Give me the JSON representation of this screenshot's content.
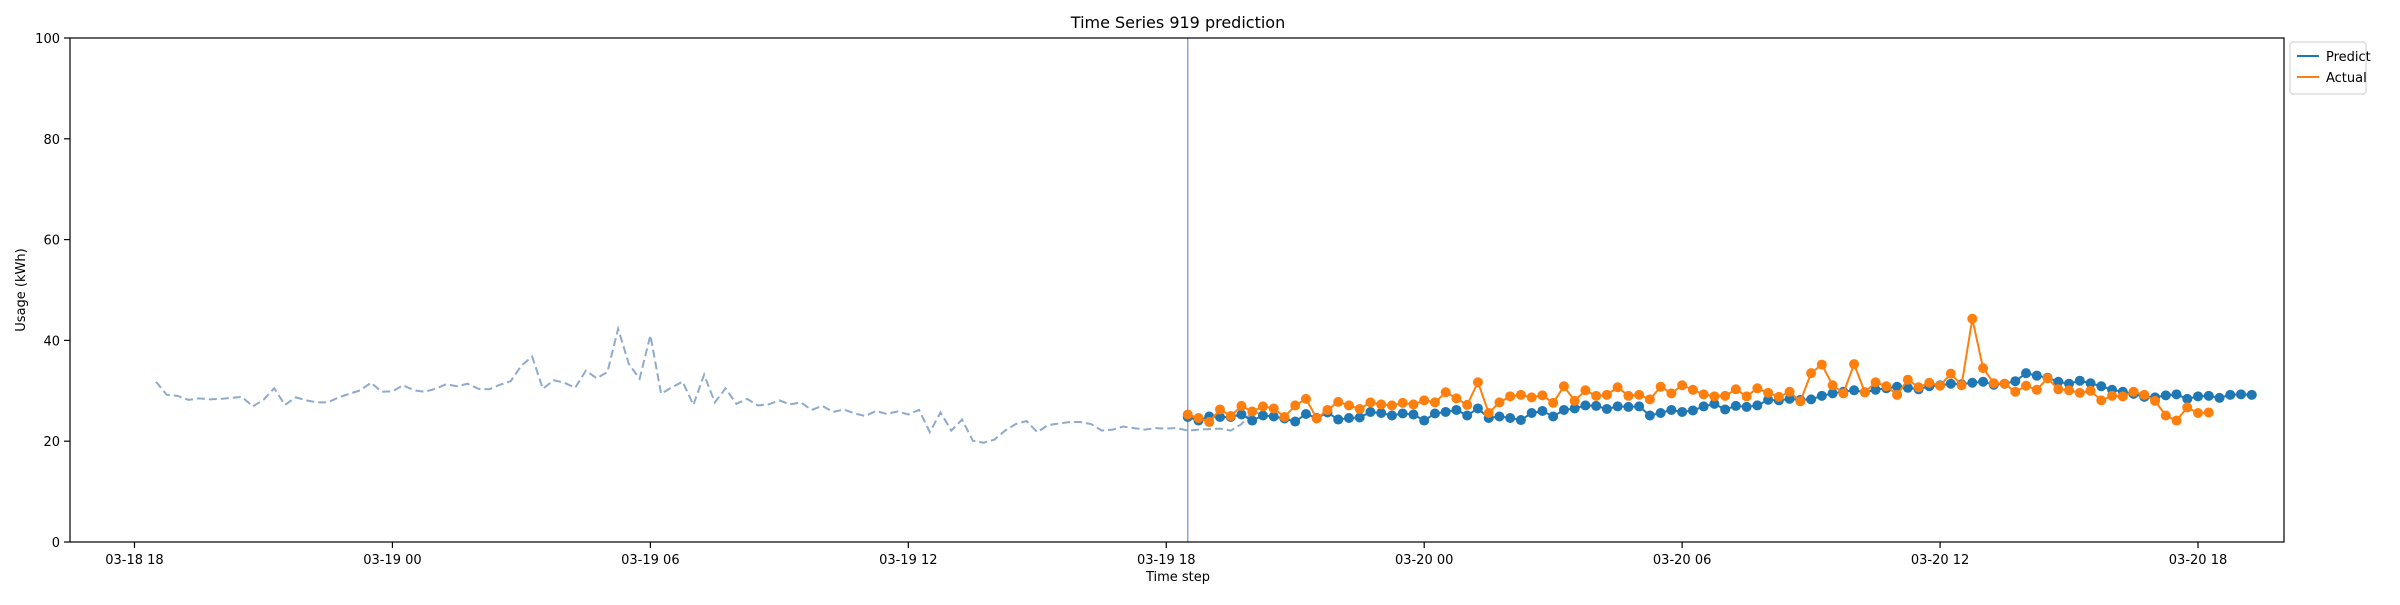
{
  "chart_data": {
    "type": "line",
    "title": "Time Series 919 prediction",
    "xlabel": "Time step",
    "ylabel": "Usage (kWh)",
    "ylim": [
      0,
      100
    ],
    "yticks": [
      0,
      20,
      40,
      60,
      80,
      100
    ],
    "xlim": [
      "2024-03-18 16:30",
      "2024-03-20 20:00"
    ],
    "xticks": [
      {
        "t": "2024-03-18 18:00",
        "label": "03-18 18"
      },
      {
        "t": "2024-03-19 00:00",
        "label": "03-19 00"
      },
      {
        "t": "2024-03-19 06:00",
        "label": "03-19 06"
      },
      {
        "t": "2024-03-19 12:00",
        "label": "03-19 12"
      },
      {
        "t": "2024-03-19 18:00",
        "label": "03-19 18"
      },
      {
        "t": "2024-03-20 00:00",
        "label": "03-20 00"
      },
      {
        "t": "2024-03-20 06:00",
        "label": "03-20 06"
      },
      {
        "t": "2024-03-20 12:00",
        "label": "03-20 12"
      },
      {
        "t": "2024-03-20 18:00",
        "label": "03-20 18"
      }
    ],
    "grid": false,
    "legend_position": "outside-top-right",
    "forecast_start": "2024-03-19 18:30",
    "series": [
      {
        "name": "",
        "role": "history",
        "style": "dashed",
        "color": "#8eaacc",
        "interval_minutes": 15,
        "start": "2024-03-18 18:30",
        "values": [
          31.8,
          29.2,
          29.0,
          28.2,
          28.5,
          28.3,
          28.4,
          28.6,
          28.8,
          26.9,
          28.2,
          30.5,
          27.2,
          28.7,
          28.1,
          27.7,
          27.7,
          28.7,
          29.4,
          30.1,
          31.6,
          29.8,
          29.9,
          31.1,
          30.1,
          29.8,
          30.4,
          31.3,
          30.9,
          31.4,
          30.4,
          30.3,
          31.2,
          31.9,
          35.0,
          36.8,
          30.4,
          32.1,
          31.6,
          30.6,
          34.0,
          32.5,
          33.7,
          42.3,
          35.3,
          32.4,
          41.0,
          29.4,
          30.7,
          31.8,
          27.2,
          33.2,
          27.7,
          30.5,
          27.4,
          28.4,
          27.1,
          27.3,
          28.1,
          27.3,
          27.7,
          26.2,
          27.0,
          25.8,
          26.3,
          25.5,
          25.0,
          26.0,
          25.4,
          25.9,
          25.3,
          26.2,
          21.8,
          25.7,
          22.1,
          24.3,
          20.1,
          19.7,
          20.3,
          22.1,
          23.4,
          24.0,
          21.8,
          23.2,
          23.5,
          23.8,
          23.8,
          23.4,
          22.1,
          22.3,
          22.9,
          22.6,
          22.3,
          22.6,
          22.5,
          22.6,
          22.1,
          22.3,
          22.4,
          22.5,
          22.1,
          23.4,
          25.9,
          25.3
        ]
      },
      {
        "name": "Predict",
        "color": "#1f77b4",
        "interval_minutes": 15,
        "start": "2024-03-19 18:30",
        "values": [
          24.8,
          24.1,
          24.9,
          24.8,
          24.8,
          25.3,
          24.1,
          25.1,
          24.9,
          24.5,
          23.9,
          25.4,
          24.6,
          25.7,
          24.3,
          24.6,
          24.7,
          25.8,
          25.6,
          25.1,
          25.5,
          25.3,
          24.1,
          25.5,
          25.8,
          26.2,
          25.1,
          26.5,
          24.6,
          24.9,
          24.6,
          24.2,
          25.6,
          26.0,
          24.9,
          26.2,
          26.5,
          27.1,
          27.0,
          26.4,
          26.9,
          26.8,
          26.9,
          25.1,
          25.6,
          26.2,
          25.8,
          26.1,
          26.9,
          27.4,
          26.3,
          27.0,
          26.8,
          27.1,
          28.2,
          28.1,
          28.4,
          28.2,
          28.3,
          29.0,
          29.5,
          29.8,
          30.1,
          29.7,
          30.2,
          30.5,
          30.8,
          30.6,
          30.3,
          30.9,
          31.1,
          31.4,
          31.3,
          31.6,
          31.8,
          31.2,
          31.4,
          31.9,
          33.5,
          33.0,
          32.6,
          31.8,
          31.4,
          32.0,
          31.5,
          30.9,
          30.2,
          29.8,
          29.4,
          28.8,
          28.7,
          29.1,
          29.3,
          28.4,
          28.9,
          29.0,
          28.6,
          29.2,
          29.3,
          29.2
        ]
      },
      {
        "name": "Actual",
        "color": "#ff7f0e",
        "interval_minutes": 15,
        "start": "2024-03-19 18:30",
        "values": [
          25.3,
          24.6,
          23.8,
          26.3,
          25.0,
          27.0,
          25.9,
          26.9,
          26.5,
          24.8,
          27.1,
          28.4,
          24.5,
          26.2,
          27.8,
          27.1,
          26.4,
          27.7,
          27.3,
          27.1,
          27.6,
          27.3,
          28.1,
          27.7,
          29.7,
          28.5,
          27.2,
          31.7,
          25.6,
          27.7,
          28.9,
          29.2,
          28.7,
          29.1,
          27.6,
          30.9,
          28.0,
          30.1,
          29.0,
          29.2,
          30.7,
          29.0,
          29.2,
          28.3,
          30.8,
          29.5,
          31.1,
          30.2,
          29.3,
          28.9,
          29.0,
          30.3,
          28.9,
          30.5,
          29.6,
          28.8,
          29.8,
          27.9,
          33.5,
          35.2,
          31.1,
          29.5,
          35.3,
          29.7,
          31.7,
          30.9,
          29.2,
          32.2,
          30.7,
          31.6,
          31.0,
          33.4,
          31.1,
          44.3,
          34.5,
          31.5,
          31.4,
          29.8,
          31.0,
          30.2,
          32.5,
          30.3,
          30.1,
          29.6,
          30.0,
          28.1,
          29.0,
          28.9,
          29.8,
          29.2,
          28.0,
          25.1,
          24.1,
          26.7,
          25.6,
          25.7
        ]
      }
    ]
  }
}
